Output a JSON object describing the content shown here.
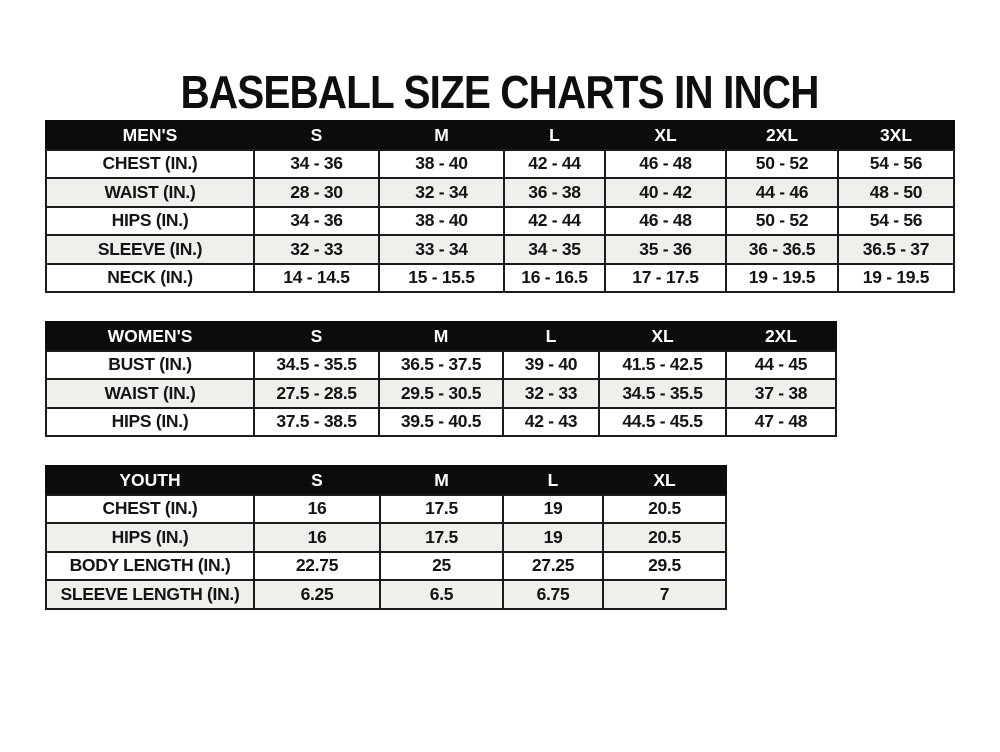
{
  "title": "BASEBALL SIZE CHARTS IN INCH",
  "colors": {
    "header_bg": "#0c0c0b",
    "header_text": "#ffffff",
    "row_alt_bg": "#efefec",
    "border": "#1b1b1b",
    "page_bg": "#ffffff"
  },
  "tables": [
    {
      "id": "mens",
      "header": [
        "MEN'S",
        "S",
        "M",
        "L",
        "XL",
        "2XL",
        "3XL"
      ],
      "rows": [
        [
          "CHEST (IN.)",
          "34 - 36",
          "38 - 40",
          "42 - 44",
          "46 - 48",
          "50 - 52",
          "54 - 56"
        ],
        [
          "WAIST (IN.)",
          "28 - 30",
          "32 - 34",
          "36 - 38",
          "40 - 42",
          "44 - 46",
          "48 - 50"
        ],
        [
          "HIPS (IN.)",
          "34 - 36",
          "38 - 40",
          "42 - 44",
          "46 - 48",
          "50 - 52",
          "54 - 56"
        ],
        [
          "SLEEVE (IN.)",
          "32 - 33",
          "33 - 34",
          "34 - 35",
          "35 - 36",
          "36 - 36.5",
          "36.5 - 37"
        ],
        [
          "NECK (IN.)",
          "14 - 14.5",
          "15 - 15.5",
          "16 - 16.5",
          "17 - 17.5",
          "19 - 19.5",
          "19 - 19.5"
        ]
      ]
    },
    {
      "id": "womens",
      "header": [
        "WOMEN'S",
        "S",
        "M",
        "L",
        "XL",
        "2XL"
      ],
      "rows": [
        [
          "BUST (IN.)",
          "34.5 - 35.5",
          "36.5 - 37.5",
          "39 - 40",
          "41.5 - 42.5",
          "44 - 45"
        ],
        [
          "WAIST (IN.)",
          "27.5 - 28.5",
          "29.5 - 30.5",
          "32 - 33",
          "34.5 - 35.5",
          "37 - 38"
        ],
        [
          "HIPS (IN.)",
          "37.5 - 38.5",
          "39.5 - 40.5",
          "42 - 43",
          "44.5 - 45.5",
          "47 - 48"
        ]
      ]
    },
    {
      "id": "youth",
      "header": [
        "YOUTH",
        "S",
        "M",
        "L",
        "XL"
      ],
      "rows": [
        [
          "CHEST (IN.)",
          "16",
          "17.5",
          "19",
          "20.5"
        ],
        [
          "HIPS (IN.)",
          "16",
          "17.5",
          "19",
          "20.5"
        ],
        [
          "BODY LENGTH (IN.)",
          "22.75",
          "25",
          "27.25",
          "29.5"
        ],
        [
          "SLEEVE LENGTH (IN.)",
          "6.25",
          "6.5",
          "6.75",
          "7"
        ]
      ]
    }
  ]
}
